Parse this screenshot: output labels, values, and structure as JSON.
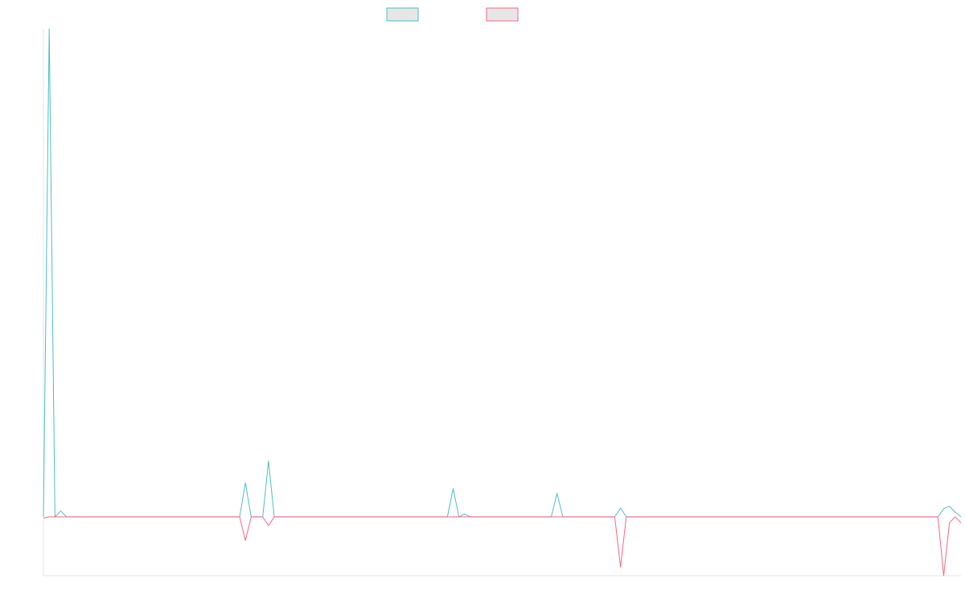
{
  "chart_data": {
    "type": "line",
    "title": "",
    "xlabel": "",
    "ylabel": "",
    "grid": false,
    "legend_position": "top-center",
    "x_count": 160,
    "ylim": [
      -100,
      830
    ],
    "series": [
      {
        "color": "#4bc0c0",
        "values": [
          0,
          830,
          0,
          10,
          0,
          0,
          0,
          0,
          0,
          0,
          0,
          0,
          0,
          0,
          0,
          0,
          0,
          0,
          0,
          0,
          0,
          0,
          0,
          0,
          0,
          0,
          0,
          0,
          0,
          0,
          0,
          0,
          0,
          0,
          0,
          58,
          0,
          0,
          0,
          95,
          0,
          0,
          0,
          0,
          0,
          0,
          0,
          0,
          0,
          0,
          0,
          0,
          0,
          0,
          0,
          0,
          0,
          0,
          0,
          0,
          0,
          0,
          0,
          0,
          0,
          0,
          0,
          0,
          0,
          0,
          0,
          48,
          0,
          5,
          0,
          0,
          0,
          0,
          0,
          0,
          0,
          0,
          0,
          0,
          0,
          0,
          0,
          0,
          0,
          40,
          0,
          0,
          0,
          0,
          0,
          0,
          0,
          0,
          0,
          0,
          15,
          0,
          0,
          0,
          0,
          0,
          0,
          0,
          0,
          0,
          0,
          0,
          0,
          0,
          0,
          0,
          0,
          0,
          0,
          0,
          0,
          0,
          0,
          0,
          0,
          0,
          0,
          0,
          0,
          0,
          0,
          0,
          0,
          0,
          0,
          0,
          0,
          0,
          0,
          0,
          0,
          0,
          0,
          0,
          0,
          0,
          0,
          0,
          0,
          0,
          0,
          0,
          0,
          0,
          0,
          0,
          14,
          18,
          8,
          0
        ]
      },
      {
        "color": "#ff6384",
        "values": [
          -2,
          0,
          0,
          0,
          0,
          0,
          0,
          0,
          0,
          0,
          0,
          0,
          0,
          0,
          0,
          0,
          0,
          0,
          0,
          0,
          0,
          0,
          0,
          0,
          0,
          0,
          0,
          0,
          0,
          0,
          0,
          0,
          0,
          0,
          0,
          -40,
          0,
          0,
          0,
          -15,
          0,
          0,
          0,
          0,
          0,
          0,
          0,
          0,
          0,
          0,
          0,
          0,
          0,
          0,
          0,
          0,
          0,
          0,
          0,
          0,
          0,
          0,
          0,
          0,
          0,
          0,
          0,
          0,
          0,
          0,
          0,
          0,
          0,
          0,
          0,
          0,
          0,
          0,
          0,
          0,
          0,
          0,
          0,
          0,
          0,
          0,
          0,
          0,
          0,
          0,
          0,
          0,
          0,
          0,
          0,
          0,
          0,
          0,
          0,
          0,
          -85,
          0,
          0,
          0,
          0,
          0,
          0,
          0,
          0,
          0,
          0,
          0,
          0,
          0,
          0,
          0,
          0,
          0,
          0,
          0,
          0,
          0,
          0,
          0,
          0,
          0,
          0,
          0,
          0,
          0,
          0,
          0,
          0,
          0,
          0,
          0,
          0,
          0,
          0,
          0,
          0,
          0,
          0,
          0,
          0,
          0,
          0,
          0,
          0,
          0,
          0,
          0,
          0,
          0,
          0,
          0,
          -100,
          -10,
          0,
          -10
        ]
      }
    ]
  }
}
